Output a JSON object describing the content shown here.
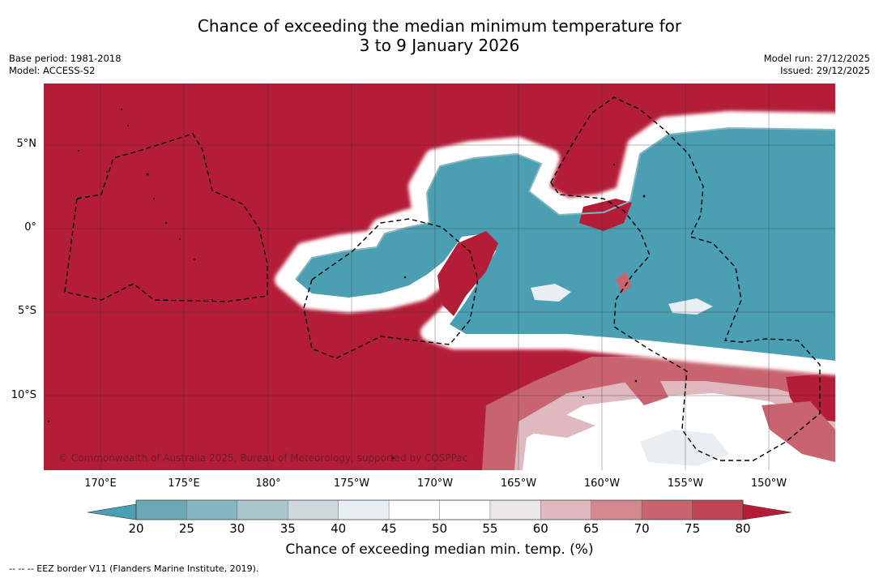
{
  "title": {
    "line1": "Chance of exceeding the median minimum temperature for",
    "line2": "3 to 9 January 2026"
  },
  "meta": {
    "base_period": "Base period: 1981-2018",
    "model": "Model: ACCESS-S2",
    "model_run": "Model run: 27/12/2025",
    "issued": "Issued: 29/12/2025"
  },
  "map": {
    "lat_labels": [
      "5°N",
      "0°",
      "5°S",
      "10°S"
    ],
    "lon_labels": [
      "170°E",
      "175°E",
      "180°",
      "175°W",
      "170°W",
      "165°W",
      "160°W",
      "155°W",
      "150°W"
    ],
    "copyright": "© Commonwealth of Australia 2025, Bureau of Meteorology, supported by COSPPac",
    "colors": {
      "very_high": "#b41d38",
      "very_low": "#4aa0b2",
      "neutral": "#ffffff"
    }
  },
  "colorbar": {
    "ticks": [
      "20",
      "25",
      "30",
      "35",
      "40",
      "45",
      "50",
      "55",
      "60",
      "65",
      "70",
      "75",
      "80"
    ],
    "colors": [
      "#6aa8b5",
      "#86b6c2",
      "#a9c6cc",
      "#cdd8da",
      "#e8eef1",
      "#ffffff",
      "#ffffff",
      "#ebe7e8",
      "#dfb9bf",
      "#d4878f",
      "#c8646f",
      "#bd4453"
    ],
    "under_color": "#4aa0b2",
    "over_color": "#b41d38",
    "label": "Chance of exceeding median min. temp. (%)"
  },
  "footnote": "--  --  -- EEZ border V11 (Flanders Marine Institute, 2019)."
}
